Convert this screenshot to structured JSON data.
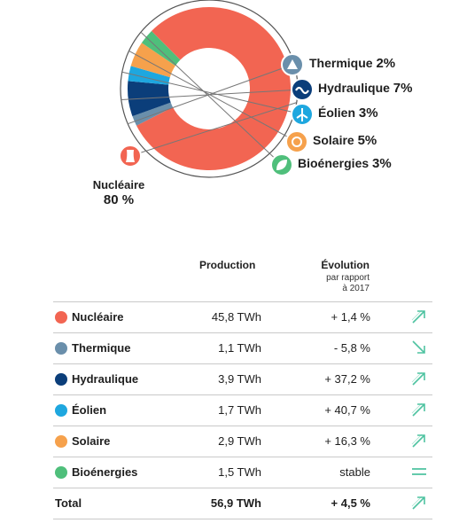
{
  "chart_data": {
    "type": "pie",
    "donut": true,
    "slices": [
      {
        "name": "Nucléaire",
        "pct_label": "80 %",
        "value": 80,
        "color": "#f26552",
        "icon": "nuclear-plant-icon"
      },
      {
        "name": "Thermique",
        "pct_label": "2%",
        "value": 2,
        "color": "#6a8fab",
        "icon": "triangle-flame-icon"
      },
      {
        "name": "Hydraulique",
        "pct_label": "7%",
        "value": 7,
        "color": "#0b3e7a",
        "icon": "wave-icon"
      },
      {
        "name": "Éolien",
        "pct_label": "3%",
        "value": 3,
        "color": "#1ea7df",
        "icon": "wind-turbine-icon"
      },
      {
        "name": "Solaire",
        "pct_label": "5%",
        "value": 5,
        "color": "#f6a14c",
        "icon": "sun-icon"
      },
      {
        "name": "Bioénergies",
        "pct_label": "3%",
        "value": 3,
        "color": "#4fbf7b",
        "icon": "leaf-icon"
      }
    ]
  },
  "table": {
    "col_production": "Production",
    "col_evolution": "Évolution",
    "col_evolution_sub1": "par rapport",
    "col_evolution_sub2": "à 2017",
    "rows": [
      {
        "name": "Nucléaire",
        "production": "45,8 TWh",
        "evolution": "+ 1,4 %",
        "trend": "up",
        "color": "#f26552",
        "icon": "nuclear-plant-icon"
      },
      {
        "name": "Thermique",
        "production": "1,1 TWh",
        "evolution": "- 5,8 %",
        "trend": "down",
        "color": "#6a8fab",
        "icon": "triangle-flame-icon"
      },
      {
        "name": "Hydraulique",
        "production": "3,9 TWh",
        "evolution": "+ 37,2 %",
        "trend": "up",
        "color": "#0b3e7a",
        "icon": "wave-icon"
      },
      {
        "name": "Éolien",
        "production": "1,7 TWh",
        "evolution": "+ 40,7 %",
        "trend": "up",
        "color": "#1ea7df",
        "icon": "wind-turbine-icon"
      },
      {
        "name": "Solaire",
        "production": "2,9 TWh",
        "evolution": "+ 16,3 %",
        "trend": "up",
        "color": "#f6a14c",
        "icon": "sun-icon"
      },
      {
        "name": "Bioénergies",
        "production": "1,5 TWh",
        "evolution": "stable",
        "trend": "stable",
        "color": "#4fbf7b",
        "icon": "leaf-icon"
      }
    ],
    "total": {
      "name": "Total",
      "production": "56,9 TWh",
      "evolution": "+ 4,5 %",
      "trend": "up"
    }
  },
  "colors": {
    "trend_icon": "#4fc3a1",
    "divider": "#c9c9c9"
  }
}
